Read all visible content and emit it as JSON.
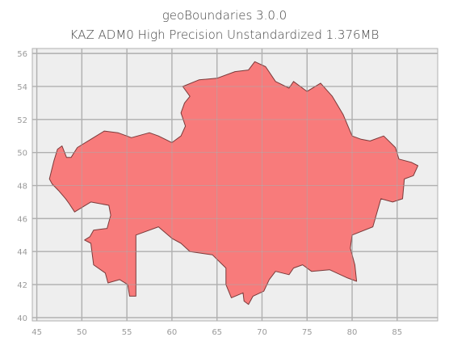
{
  "title": "geoBoundaries 3.0.0",
  "subtitle": "KAZ ADM0 High Precision Unstandardized 1.376MB",
  "colors": {
    "background": "#ffffff",
    "plot_background": "#eeeeee",
    "grid": "#b0b0b0",
    "fill": "#f87474",
    "outline": "#7a3a3a",
    "tick_text": "#9a9a9a",
    "title_text": "#444444"
  },
  "chart_data": {
    "type": "map",
    "region": "KAZ",
    "admin_level": "ADM0",
    "x_ticks": [
      45,
      50,
      55,
      60,
      65,
      70,
      75,
      80,
      85
    ],
    "y_ticks": [
      40,
      42,
      44,
      46,
      48,
      50,
      52,
      54,
      56
    ],
    "xlim": [
      44.5,
      89.5
    ],
    "ylim": [
      39.8,
      56.3
    ],
    "grid": true,
    "outline": [
      [
        46.4,
        48.4
      ],
      [
        46.9,
        49.5
      ],
      [
        47.3,
        50.2
      ],
      [
        47.8,
        50.4
      ],
      [
        48.3,
        49.7
      ],
      [
        48.8,
        49.7
      ],
      [
        49.5,
        50.3
      ],
      [
        51.0,
        50.8
      ],
      [
        52.5,
        51.3
      ],
      [
        54.0,
        51.2
      ],
      [
        55.5,
        50.9
      ],
      [
        57.5,
        51.2
      ],
      [
        58.5,
        51.0
      ],
      [
        60.0,
        50.6
      ],
      [
        61.0,
        51.0
      ],
      [
        61.5,
        51.6
      ],
      [
        61.0,
        52.4
      ],
      [
        61.4,
        53.0
      ],
      [
        62.0,
        53.4
      ],
      [
        61.2,
        54.0
      ],
      [
        63.0,
        54.4
      ],
      [
        65.0,
        54.5
      ],
      [
        67.0,
        54.9
      ],
      [
        68.5,
        55.0
      ],
      [
        69.2,
        55.5
      ],
      [
        70.4,
        55.2
      ],
      [
        71.5,
        54.3
      ],
      [
        73.0,
        53.9
      ],
      [
        73.5,
        54.3
      ],
      [
        75.0,
        53.7
      ],
      [
        76.5,
        54.2
      ],
      [
        77.8,
        53.4
      ],
      [
        79.0,
        52.3
      ],
      [
        80.0,
        51.0
      ],
      [
        81.0,
        50.8
      ],
      [
        82.0,
        50.7
      ],
      [
        83.5,
        51.0
      ],
      [
        84.8,
        50.3
      ],
      [
        85.2,
        49.6
      ],
      [
        86.6,
        49.4
      ],
      [
        87.3,
        49.2
      ],
      [
        86.8,
        48.6
      ],
      [
        85.8,
        48.4
      ],
      [
        85.6,
        47.2
      ],
      [
        84.5,
        47.0
      ],
      [
        83.2,
        47.2
      ],
      [
        82.3,
        45.5
      ],
      [
        80.0,
        45.0
      ],
      [
        79.8,
        44.2
      ],
      [
        80.3,
        43.2
      ],
      [
        80.5,
        42.2
      ],
      [
        79.5,
        42.4
      ],
      [
        77.5,
        42.9
      ],
      [
        75.5,
        42.8
      ],
      [
        74.5,
        43.2
      ],
      [
        73.5,
        43.0
      ],
      [
        73.0,
        42.6
      ],
      [
        71.5,
        42.8
      ],
      [
        70.8,
        42.3
      ],
      [
        70.2,
        41.6
      ],
      [
        69.0,
        41.3
      ],
      [
        68.5,
        40.8
      ],
      [
        68.0,
        41.0
      ],
      [
        67.9,
        41.5
      ],
      [
        66.6,
        41.2
      ],
      [
        66.0,
        42.0
      ],
      [
        66.0,
        43.0
      ],
      [
        64.5,
        43.8
      ],
      [
        62.0,
        44.0
      ],
      [
        61.0,
        44.5
      ],
      [
        60.0,
        44.8
      ],
      [
        58.5,
        45.5
      ],
      [
        56.0,
        45.0
      ],
      [
        56.0,
        41.3
      ],
      [
        55.3,
        41.3
      ],
      [
        55.1,
        42.0
      ],
      [
        54.2,
        42.3
      ],
      [
        52.9,
        42.1
      ],
      [
        52.6,
        42.7
      ],
      [
        51.3,
        43.2
      ],
      [
        51.0,
        44.5
      ],
      [
        50.3,
        44.7
      ],
      [
        50.9,
        44.9
      ],
      [
        51.3,
        45.3
      ],
      [
        52.8,
        45.4
      ],
      [
        53.2,
        46.2
      ],
      [
        53.0,
        46.8
      ],
      [
        51.0,
        47.0
      ],
      [
        49.2,
        46.4
      ],
      [
        48.6,
        46.9
      ],
      [
        48.2,
        47.2
      ],
      [
        47.4,
        47.7
      ],
      [
        46.7,
        48.1
      ]
    ]
  }
}
